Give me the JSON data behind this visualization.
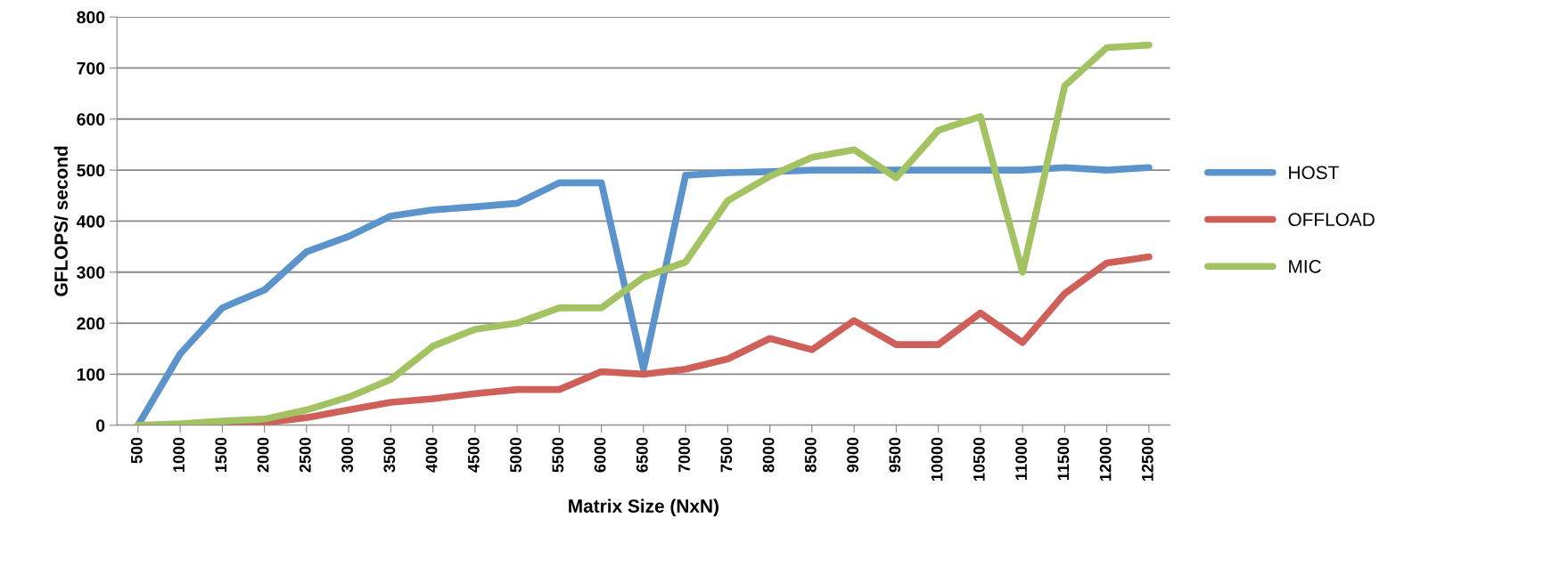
{
  "chart_data": {
    "type": "line",
    "xlabel": "Matrix Size (NxN)",
    "ylabel": "GFLOPS/ second",
    "categories": [
      "500",
      "1000",
      "1500",
      "2000",
      "2500",
      "3000",
      "3500",
      "4000",
      "4500",
      "5000",
      "5500",
      "6000",
      "6500",
      "7000",
      "7500",
      "8000",
      "8500",
      "9000",
      "9500",
      "10000",
      "10500",
      "11000",
      "11500",
      "12000",
      "12500"
    ],
    "series": [
      {
        "name": "HOST",
        "color": "#5b93cc",
        "values": [
          0,
          140,
          230,
          265,
          340,
          370,
          410,
          422,
          428,
          435,
          475,
          475,
          110,
          490,
          495,
          497,
          500,
          500,
          500,
          500,
          500,
          500,
          505,
          500,
          505
        ]
      },
      {
        "name": "OFFLOAD",
        "color": "#cf5f59",
        "values": [
          0,
          0,
          0,
          5,
          15,
          30,
          45,
          52,
          62,
          70,
          70,
          105,
          100,
          110,
          130,
          170,
          148,
          205,
          158,
          158,
          220,
          162,
          258,
          318,
          330
        ]
      },
      {
        "name": "MIC",
        "color": "#a3c362",
        "values": [
          0,
          3,
          8,
          12,
          30,
          55,
          90,
          155,
          188,
          200,
          230,
          230,
          290,
          320,
          440,
          488,
          525,
          540,
          485,
          578,
          605,
          300,
          665,
          740,
          745
        ]
      }
    ],
    "ylim": [
      0,
      800
    ],
    "yticks": [
      0,
      100,
      200,
      300,
      400,
      500,
      600,
      700,
      800
    ],
    "grid": "y",
    "legend": "right",
    "marker": "none",
    "line_style": "solid"
  }
}
